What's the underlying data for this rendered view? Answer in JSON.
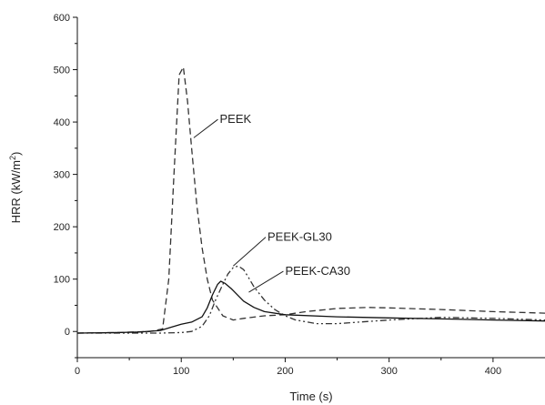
{
  "chart_data": {
    "type": "line",
    "title": "",
    "xlabel": "Time (s)",
    "ylabel_main": "HRR (kW/m",
    "ylabel_sup": "2",
    "ylabel_close": ")",
    "xlim": [
      0,
      450
    ],
    "ylim": [
      -50,
      600
    ],
    "x_ticks": [
      0,
      100,
      200,
      300,
      400
    ],
    "y_ticks": [
      0,
      100,
      200,
      300,
      400,
      500,
      600
    ],
    "grid": false,
    "legend": "none",
    "series": [
      {
        "name": "PEEK",
        "color": "#333333",
        "dash": "7,4",
        "x": [
          0,
          40,
          70,
          82,
          88,
          93,
          98,
          102,
          106,
          110,
          115,
          120,
          125,
          130,
          140,
          150,
          160,
          180,
          200,
          220,
          250,
          280,
          300,
          350,
          400,
          450
        ],
        "y": [
          -3,
          -2,
          0,
          5,
          100,
          300,
          490,
          505,
          440,
          350,
          240,
          160,
          100,
          60,
          30,
          22,
          25,
          30,
          32,
          38,
          44,
          46,
          45,
          42,
          38,
          35
        ]
      },
      {
        "name": "PEEK-GL30",
        "color": "#333333",
        "dash": "7,3,2,3,2,3",
        "x": [
          0,
          50,
          80,
          100,
          110,
          120,
          127,
          133,
          140,
          145,
          150,
          155,
          160,
          165,
          170,
          180,
          190,
          200,
          210,
          230,
          250,
          300,
          350,
          400,
          450
        ],
        "y": [
          -3,
          -3,
          -3,
          -2,
          0,
          10,
          30,
          60,
          90,
          110,
          122,
          125,
          118,
          102,
          85,
          60,
          42,
          30,
          22,
          15,
          15,
          22,
          27,
          25,
          22
        ]
      },
      {
        "name": "PEEK-CA30",
        "color": "#111111",
        "dash": "",
        "x": [
          0,
          40,
          60,
          80,
          90,
          100,
          110,
          120,
          125,
          130,
          135,
          138,
          142,
          148,
          155,
          160,
          170,
          180,
          200,
          250,
          300,
          350,
          400,
          450
        ],
        "y": [
          -3,
          -2,
          -1,
          2,
          8,
          14,
          18,
          28,
          45,
          70,
          90,
          96,
          92,
          82,
          68,
          58,
          46,
          38,
          32,
          28,
          26,
          24,
          22,
          20
        ]
      }
    ],
    "annotations": [
      {
        "series": "PEEK",
        "text": "PEEK",
        "label_x": 137,
        "label_y": 405,
        "point_x": 112,
        "point_y": 370
      },
      {
        "series": "PEEK-GL30",
        "text": "PEEK-GL30",
        "label_x": 183,
        "label_y": 180,
        "point_x": 150,
        "point_y": 125
      },
      {
        "series": "PEEK-CA30",
        "text": "PEEK-CA30",
        "label_x": 200,
        "label_y": 115,
        "point_x": 165,
        "point_y": 75
      }
    ]
  }
}
